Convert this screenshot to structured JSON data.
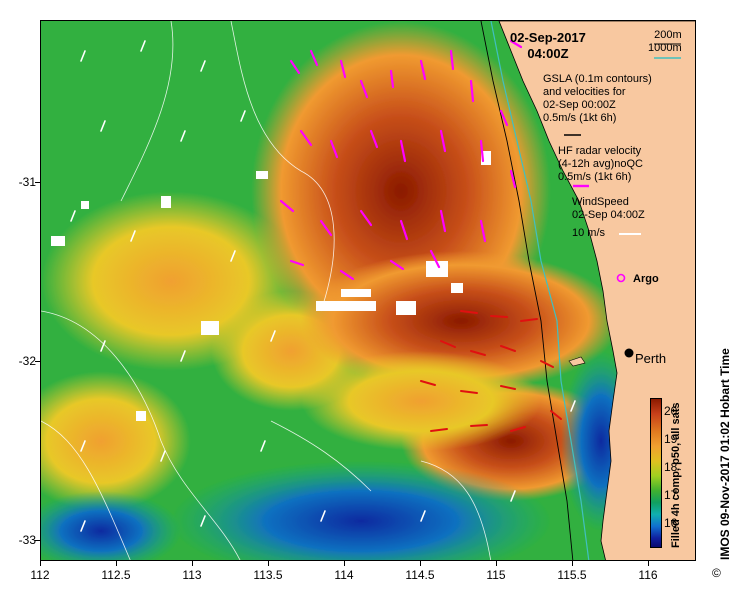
{
  "map": {
    "title_date": "02-Sep-2017",
    "title_time": "04:00Z",
    "depth_contours": {
      "label_200": "200m",
      "label_1000": "1000m",
      "color_200": "#000000",
      "color_1000": "#40c0c0"
    },
    "gsla_legend": {
      "line1": "GSLA (0.1m contours)",
      "line2": "and velocities for",
      "line3": "02-Sep 00:00Z",
      "line4": "0.5m/s (1kt 6h)"
    },
    "hf_legend": {
      "line1": "HF radar velocity",
      "line2": "(4-12h avg)noQC",
      "line3": "0.5m/s (1kt 6h)",
      "color": "#ff00ff"
    },
    "wind_legend": {
      "line1": "WindSpeed",
      "line2": "02-Sep 04:00Z",
      "line3": "10 m/s"
    },
    "argo_label": "Argo",
    "city_label": "Perth",
    "x_ticks": [
      "112",
      "112.5",
      "113",
      "113.5",
      "114",
      "114.5",
      "115",
      "115.5",
      "116"
    ],
    "y_ticks": [
      "-31",
      "-32",
      "-33"
    ],
    "colorbar": {
      "ticks": [
        "20",
        "19",
        "18",
        "17",
        "16"
      ],
      "title": "Filled 4h comp, p50, all sats"
    },
    "credit": "IMOS 09-Nov-2017 01:02 Hobart Time",
    "copyright": "©",
    "land_color": "#f8c8a0",
    "ocean_colors": {
      "warm_dark": "#8b1a00",
      "warm": "#d0601a",
      "orange": "#f09a30",
      "yellow": "#e8c828",
      "green": "#30b040",
      "teal": "#10a0a0",
      "blue": "#1050c0"
    }
  }
}
